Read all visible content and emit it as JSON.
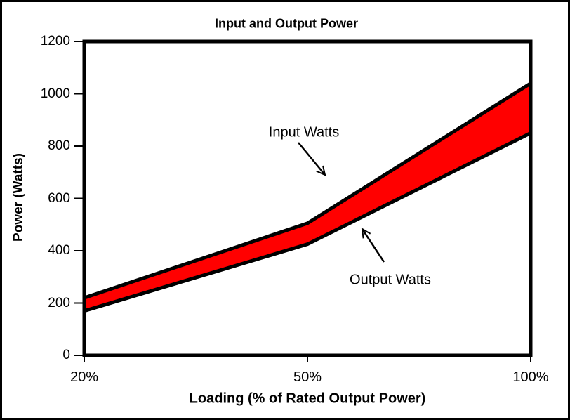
{
  "window": {
    "background_color": "#ffffff",
    "frame_border_color": "#000000"
  },
  "chart_data": {
    "type": "area",
    "title": "Input and Output Power",
    "xlabel": "Loading (% of Rated Output Power)",
    "ylabel": "Power (Watts)",
    "categories": [
      "20%",
      "50%",
      "100%"
    ],
    "series": [
      {
        "name": "Input Watts",
        "values": [
          220,
          505,
          1040
        ]
      },
      {
        "name": "Output Watts",
        "values": [
          170,
          425,
          850
        ]
      }
    ],
    "fill_between_series": true,
    "band_color": "#ff0000",
    "line_color": "#000000",
    "ylim": [
      0,
      1200
    ],
    "y_ticks": [
      0,
      200,
      400,
      600,
      800,
      1000,
      1200
    ],
    "grid": false,
    "legend": "none",
    "annotations": [
      {
        "text": "Input Watts",
        "points_to": "Input Watts line"
      },
      {
        "text": "Output Watts",
        "points_to": "Output Watts line"
      }
    ]
  }
}
